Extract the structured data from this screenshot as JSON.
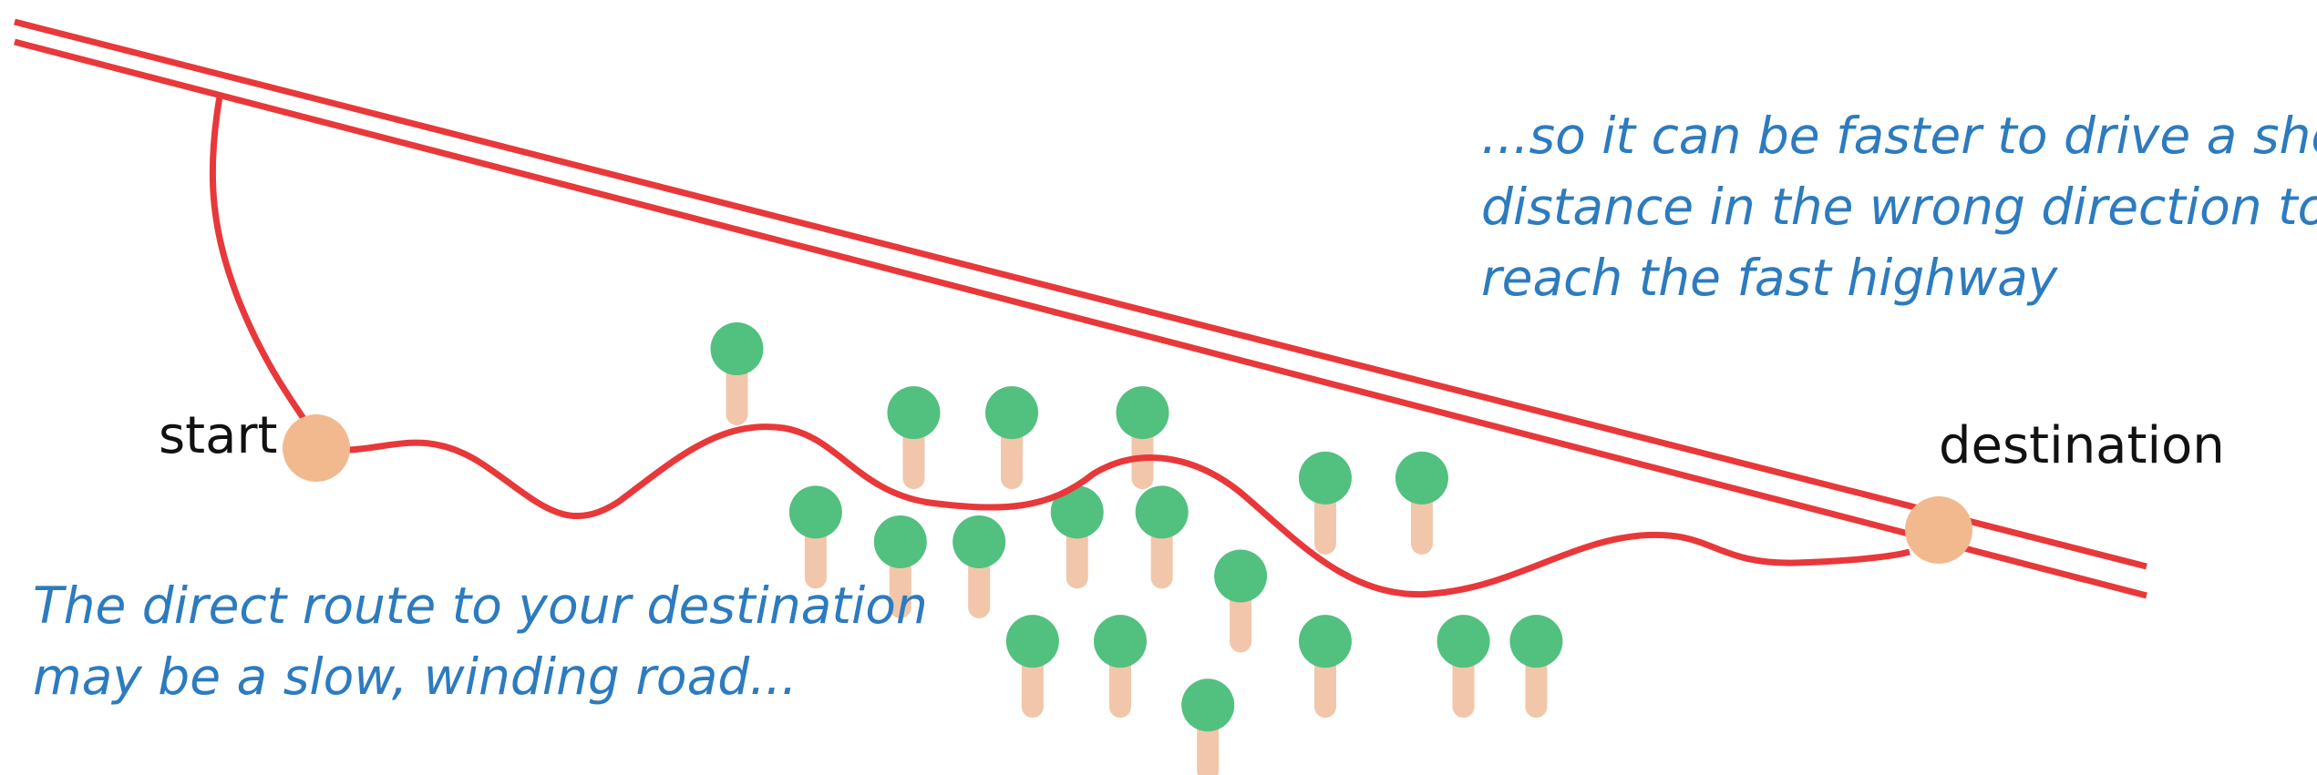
{
  "labels": {
    "start": "start",
    "destination": "destination"
  },
  "captions": {
    "direct": [
      "The direct route to your destination",
      "may be a slow, winding road..."
    ],
    "highway": [
      "...so it can be faster to drive a short",
      "distance in the wrong direction to",
      "reach the fast highway"
    ]
  }
}
